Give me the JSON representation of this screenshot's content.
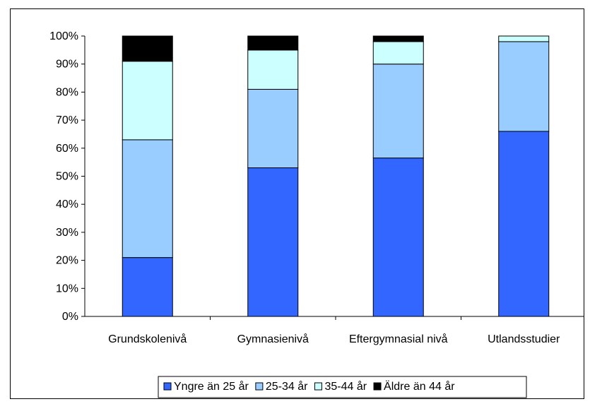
{
  "chart_data": {
    "type": "bar",
    "stacked": true,
    "percent": true,
    "title": "",
    "xlabel": "",
    "ylabel": "",
    "ylim": [
      0,
      100
    ],
    "yticks": [
      "0%",
      "10%",
      "20%",
      "30%",
      "40%",
      "50%",
      "60%",
      "70%",
      "80%",
      "90%",
      "100%"
    ],
    "grid": false,
    "legend": "bottom",
    "categories": [
      "Grundskolenivå",
      "Gymnasienivå",
      "Eftergymnasial nivå",
      "Utlandsstudier"
    ],
    "series": [
      {
        "name": "Yngre än 25 år",
        "color": "#3366ff",
        "values": [
          21,
          53,
          56.5,
          66
        ]
      },
      {
        "name": "25-34 år",
        "color": "#99ccff",
        "values": [
          42,
          28,
          33.5,
          32
        ]
      },
      {
        "name": "35-44 år",
        "color": "#ccffff",
        "values": [
          28,
          14,
          8,
          2
        ]
      },
      {
        "name": "Äldre än 44 år",
        "color": "#000000",
        "values": [
          9,
          5,
          2,
          0
        ]
      }
    ]
  }
}
